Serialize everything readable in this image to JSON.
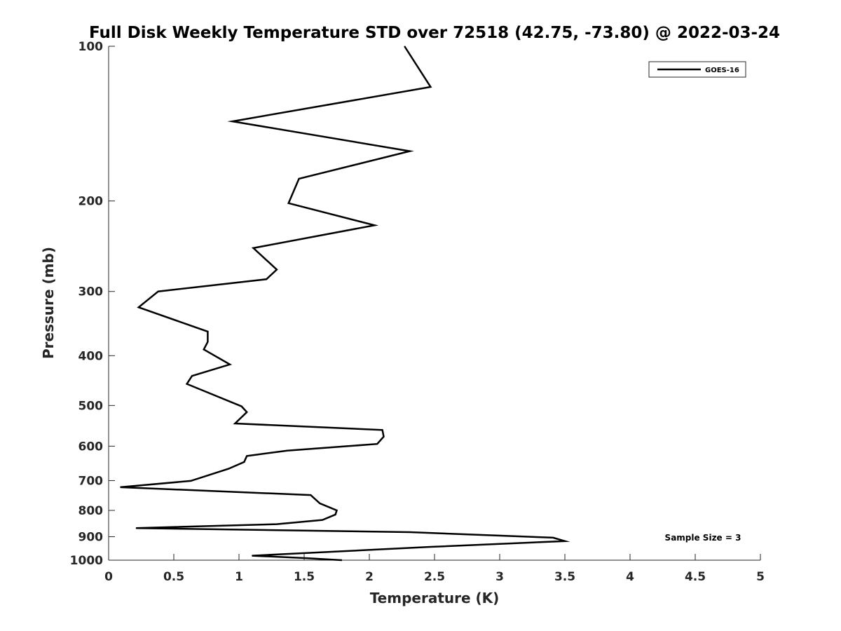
{
  "chart_data": {
    "type": "line",
    "title": "Full Disk Weekly Temperature STD over 72518 (42.75, -73.80) @ 2022-03-24",
    "xlabel": "Temperature (K)",
    "ylabel": "Pressure (mb)",
    "xlim": [
      0,
      5
    ],
    "ylim": [
      1000,
      100
    ],
    "yscale": "log",
    "y_reversed": true,
    "xticks": [
      "0",
      "0.5",
      "1",
      "1.5",
      "2",
      "2.5",
      "3",
      "3.5",
      "4",
      "4.5",
      "5"
    ],
    "yticks": [
      "100",
      "200",
      "300",
      "400",
      "500",
      "600",
      "700",
      "800",
      "900",
      "1000"
    ],
    "grid": false,
    "legend_position": "top-right",
    "annotation": "Sample Size = 3",
    "series": [
      {
        "name": "GOES-16",
        "color": "#000000",
        "points": [
          [
            2.27,
            100
          ],
          [
            2.47,
            120
          ],
          [
            0.95,
            140
          ],
          [
            2.31,
            160
          ],
          [
            1.46,
            181
          ],
          [
            1.38,
            202
          ],
          [
            2.04,
            223
          ],
          [
            1.11,
            247
          ],
          [
            1.29,
            272
          ],
          [
            1.21,
            284
          ],
          [
            0.38,
            300
          ],
          [
            0.23,
            322
          ],
          [
            0.76,
            359
          ],
          [
            0.76,
            376
          ],
          [
            0.73,
            389
          ],
          [
            0.93,
            416
          ],
          [
            0.64,
            438
          ],
          [
            0.6,
            454
          ],
          [
            1.02,
            502
          ],
          [
            1.06,
            515
          ],
          [
            0.97,
            542
          ],
          [
            2.1,
            558
          ],
          [
            2.11,
            575
          ],
          [
            2.06,
            594
          ],
          [
            1.37,
            612
          ],
          [
            1.06,
            627
          ],
          [
            1.04,
            644
          ],
          [
            0.92,
            664
          ],
          [
            0.63,
            701
          ],
          [
            0.09,
            721
          ],
          [
            1.55,
            747
          ],
          [
            1.62,
            775
          ],
          [
            1.75,
            800
          ],
          [
            1.74,
            815
          ],
          [
            1.64,
            835
          ],
          [
            1.29,
            851
          ],
          [
            0.21,
            866
          ],
          [
            2.31,
            882
          ],
          [
            3.41,
            904
          ],
          [
            3.5,
            918
          ],
          [
            2.47,
            942
          ],
          [
            1.1,
            980
          ],
          [
            1.52,
            991
          ],
          [
            1.79,
            1000
          ]
        ]
      }
    ]
  }
}
